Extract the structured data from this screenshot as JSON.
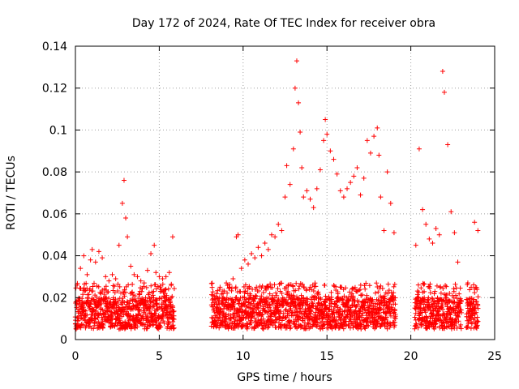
{
  "chart_data": {
    "type": "scatter",
    "title": "Day 172 of 2024, Rate Of TEC Index for receiver obra",
    "xlabel": "GPS time / hours",
    "ylabel": "ROTI / TECUs",
    "xlim": [
      0,
      25
    ],
    "ylim": [
      0,
      0.14
    ],
    "xticks": [
      0,
      5,
      10,
      15,
      20,
      25
    ],
    "xtick_labels": [
      "0",
      "5",
      "10",
      "15",
      "20",
      "25"
    ],
    "yticks": [
      0,
      0.02,
      0.04,
      0.06,
      0.08,
      0.1,
      0.12,
      0.14
    ],
    "ytick_labels": [
      "0",
      "0.02",
      "0.04",
      "0.06",
      "0.08",
      "0.1",
      "0.12",
      "0.14"
    ],
    "grid": true,
    "marker": "+",
    "color": "#ff0000",
    "data_gap_hours": [
      [
        5.9,
        8.1
      ],
      [
        19.1,
        20.2
      ],
      [
        23.0,
        23.3
      ]
    ],
    "series": [
      {
        "name": "ROTI",
        "x": [
          0.1,
          0.3,
          0.5,
          0.7,
          0.9,
          1.0,
          1.2,
          1.4,
          1.6,
          1.8,
          2.0,
          2.2,
          2.4,
          2.6,
          2.8,
          2.9,
          3.0,
          3.1,
          3.3,
          3.5,
          3.7,
          3.9,
          4.1,
          4.3,
          4.5,
          4.7,
          4.8,
          5.0,
          5.2,
          5.4,
          5.6,
          5.8,
          8.2,
          8.4,
          8.6,
          8.8,
          9.0,
          9.2,
          9.4,
          9.6,
          9.7,
          9.9,
          10.1,
          10.3,
          10.5,
          10.7,
          10.9,
          11.1,
          11.3,
          11.5,
          11.7,
          11.9,
          12.1,
          12.3,
          12.5,
          12.6,
          12.8,
          13.0,
          13.1,
          13.2,
          13.3,
          13.4,
          13.5,
          13.6,
          13.8,
          14.0,
          14.2,
          14.4,
          14.6,
          14.8,
          14.9,
          15.0,
          15.2,
          15.4,
          15.6,
          15.8,
          16.0,
          16.2,
          16.4,
          16.6,
          16.8,
          17.0,
          17.2,
          17.4,
          17.6,
          17.8,
          18.0,
          18.1,
          18.2,
          18.4,
          18.6,
          18.8,
          19.0,
          20.3,
          20.5,
          20.7,
          20.9,
          21.1,
          21.3,
          21.5,
          21.7,
          21.9,
          22.0,
          22.2,
          22.4,
          22.6,
          22.8,
          23.4,
          23.6,
          23.8,
          24.0
        ],
        "y": [
          0.026,
          0.034,
          0.04,
          0.031,
          0.038,
          0.043,
          0.037,
          0.042,
          0.039,
          0.03,
          0.028,
          0.031,
          0.029,
          0.045,
          0.065,
          0.076,
          0.058,
          0.049,
          0.035,
          0.031,
          0.03,
          0.028,
          0.027,
          0.033,
          0.041,
          0.045,
          0.032,
          0.03,
          0.029,
          0.03,
          0.032,
          0.049,
          0.021,
          0.02,
          0.024,
          0.022,
          0.027,
          0.025,
          0.029,
          0.049,
          0.05,
          0.034,
          0.038,
          0.036,
          0.041,
          0.039,
          0.044,
          0.04,
          0.046,
          0.043,
          0.05,
          0.049,
          0.055,
          0.052,
          0.068,
          0.083,
          0.074,
          0.091,
          0.12,
          0.133,
          0.113,
          0.099,
          0.082,
          0.068,
          0.071,
          0.067,
          0.063,
          0.072,
          0.081,
          0.095,
          0.105,
          0.098,
          0.09,
          0.086,
          0.079,
          0.071,
          0.068,
          0.072,
          0.075,
          0.078,
          0.082,
          0.069,
          0.077,
          0.095,
          0.089,
          0.097,
          0.101,
          0.088,
          0.068,
          0.052,
          0.08,
          0.065,
          0.051,
          0.045,
          0.091,
          0.062,
          0.055,
          0.048,
          0.046,
          0.053,
          0.05,
          0.128,
          0.118,
          0.093,
          0.061,
          0.051,
          0.037,
          0.027,
          0.025,
          0.056,
          0.052
        ]
      }
    ]
  }
}
